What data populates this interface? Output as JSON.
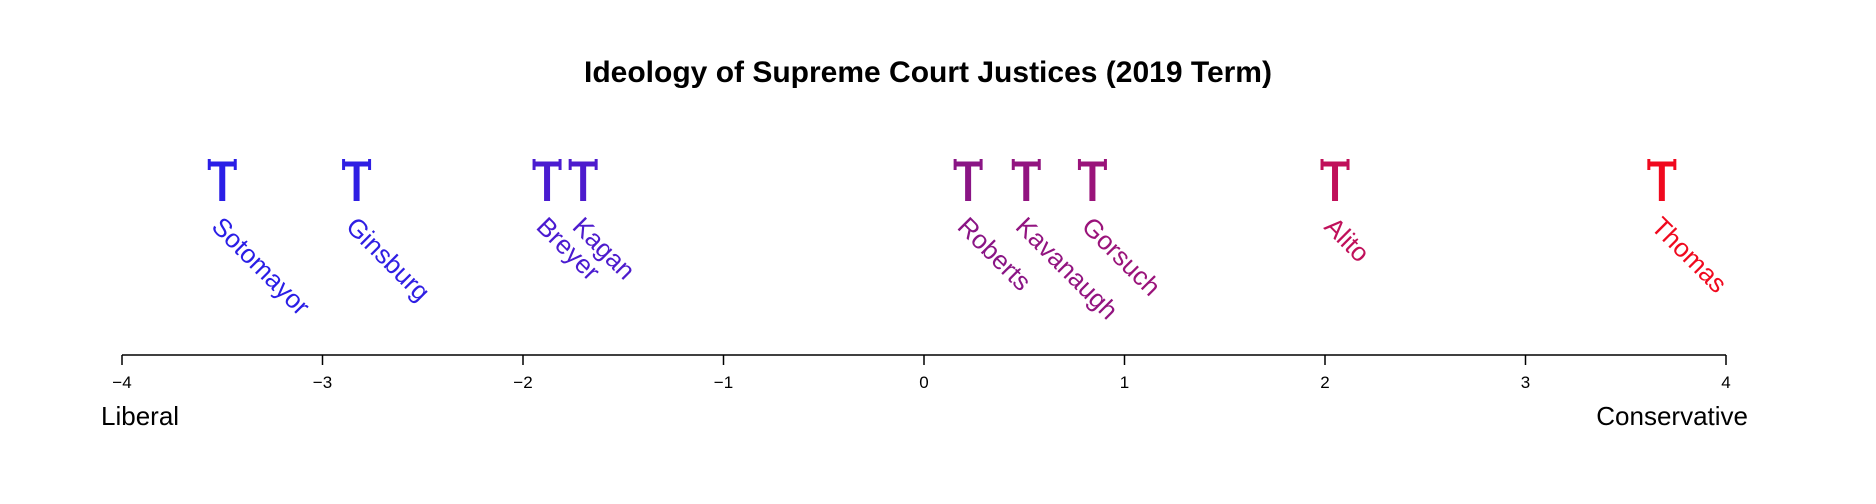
{
  "chart_data": {
    "type": "scatter",
    "title": "Ideology of Supreme Court Justices (2019 Term)",
    "xlim": [
      -4,
      4
    ],
    "x_ticks": [
      -4,
      -3,
      -2,
      -1,
      0,
      1,
      2,
      3,
      4
    ],
    "x_tick_labels": [
      "−4",
      "−3",
      "−2",
      "−1",
      "0",
      "1",
      "2",
      "3",
      "4"
    ],
    "left_label": "Liberal",
    "right_label": "Conservative",
    "grid": false,
    "points": [
      {
        "name": "Sotomayor",
        "x": -3.5,
        "color": "#2a1ee6"
      },
      {
        "name": "Ginsburg",
        "x": -2.83,
        "color": "#2f1ee3"
      },
      {
        "name": "Breyer",
        "x": -1.88,
        "color": "#4a1bd0"
      },
      {
        "name": "Kagan",
        "x": -1.7,
        "color": "#4d1bcd"
      },
      {
        "name": "Roberts",
        "x": 0.22,
        "color": "#8a1585"
      },
      {
        "name": "Kavanaugh",
        "x": 0.51,
        "color": "#921480"
      },
      {
        "name": "Gorsuch",
        "x": 0.84,
        "color": "#9a137a"
      },
      {
        "name": "Alito",
        "x": 2.05,
        "color": "#c0105a"
      },
      {
        "name": "Thomas",
        "x": 3.68,
        "color": "#f0091e"
      }
    ]
  }
}
